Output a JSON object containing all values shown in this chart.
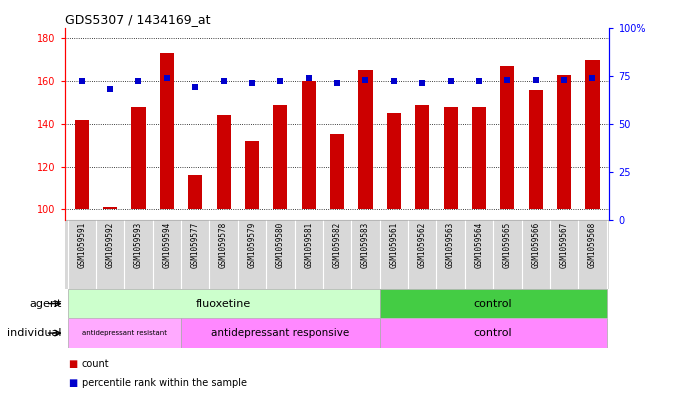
{
  "title": "GDS5307 / 1434169_at",
  "samples": [
    "GSM1059591",
    "GSM1059592",
    "GSM1059593",
    "GSM1059594",
    "GSM1059577",
    "GSM1059578",
    "GSM1059579",
    "GSM1059580",
    "GSM1059581",
    "GSM1059582",
    "GSM1059583",
    "GSM1059561",
    "GSM1059562",
    "GSM1059563",
    "GSM1059564",
    "GSM1059565",
    "GSM1059566",
    "GSM1059567",
    "GSM1059568"
  ],
  "counts": [
    142,
    101,
    148,
    173,
    116,
    144,
    132,
    149,
    160,
    135,
    165,
    145,
    149,
    148,
    148,
    167,
    156,
    163,
    170
  ],
  "percentiles": [
    72,
    68,
    72,
    74,
    69,
    72,
    71,
    72,
    74,
    71,
    73,
    72,
    71,
    72,
    72,
    73,
    73,
    73,
    74
  ],
  "ylim_left": [
    95,
    185
  ],
  "ylim_right": [
    0,
    100
  ],
  "yticks_left": [
    100,
    120,
    140,
    160,
    180
  ],
  "yticks_right": [
    0,
    25,
    50,
    75,
    100
  ],
  "bar_color": "#cc0000",
  "dot_color": "#0000cc",
  "fluoxetine_color": "#ccffcc",
  "fluoxetine_dark_color": "#44cc44",
  "control_agent_color": "#44cc44",
  "resist_color": "#ffaaff",
  "responsive_color": "#ff88ff",
  "control_indiv_color": "#ff88ff",
  "sample_bg_color": "#d8d8d8",
  "plot_bg_color": "#ffffff",
  "legend_count_color": "#cc0000",
  "legend_dot_color": "#0000cc",
  "legend_count_label": "count",
  "legend_percentile_label": "percentile rank within the sample"
}
